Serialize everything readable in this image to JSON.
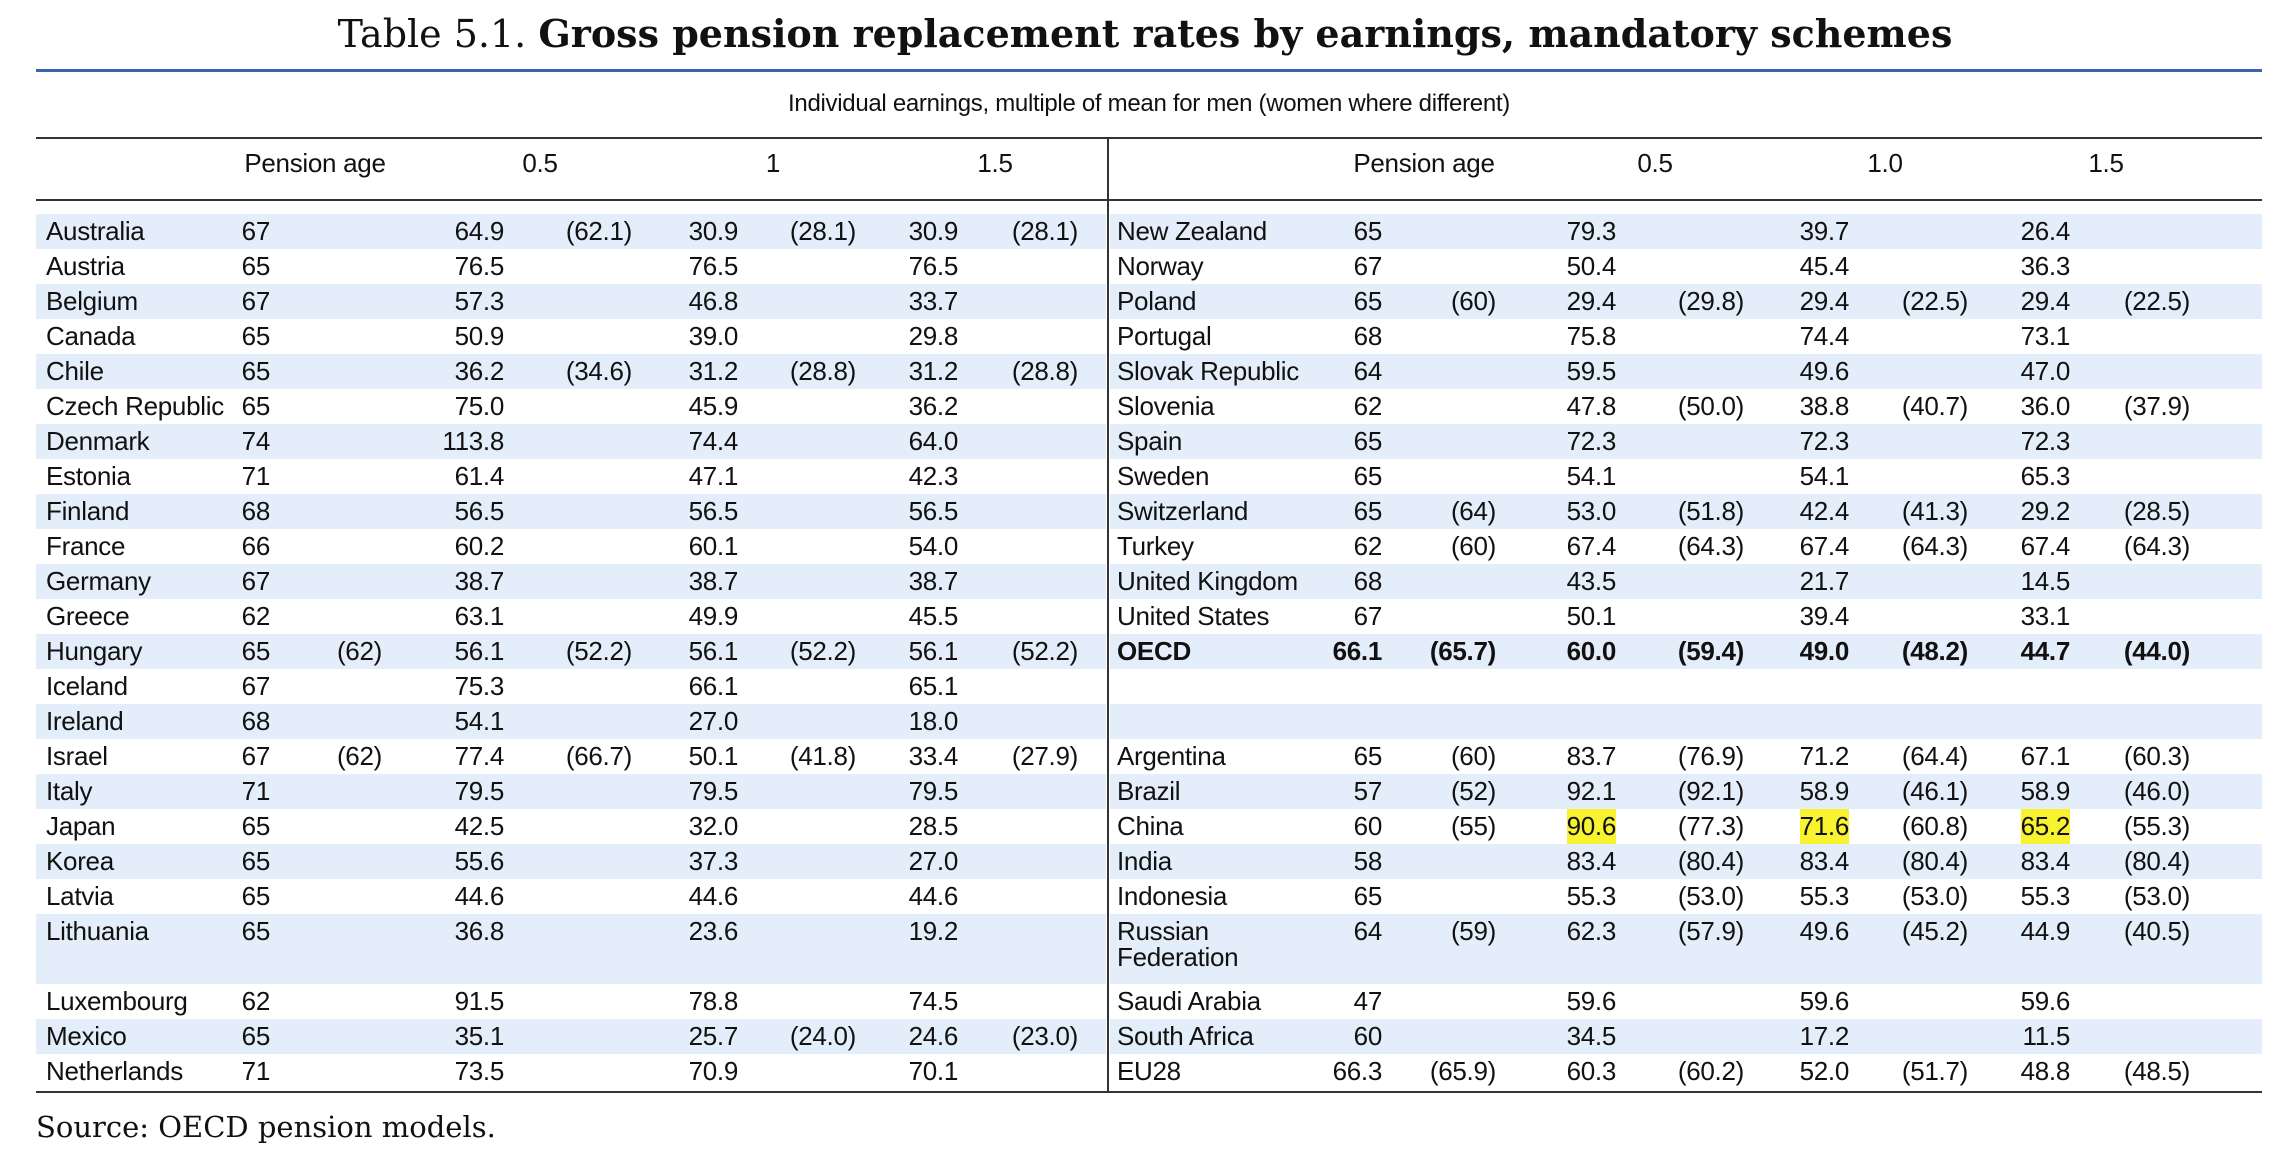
{
  "title": {
    "prefix": "Table 5.1.",
    "main": "Gross pension replacement rates by earnings, mandatory schemes"
  },
  "subheader": "Individual earnings, multiple of mean for men (women where different)",
  "columns_left": [
    "Pension age",
    "0.5",
    "1",
    "1.5"
  ],
  "columns_right": [
    "Pension age",
    "0.5",
    "1.0",
    "1.5"
  ],
  "left_rows": [
    {
      "country": "Australia",
      "age": "67",
      "age_w": "",
      "r05": "64.9",
      "r05_w": "(62.1)",
      "r1": "30.9",
      "r1_w": "(28.1)",
      "r15": "30.9",
      "r15_w": "(28.1)"
    },
    {
      "country": "Austria",
      "age": "65",
      "age_w": "",
      "r05": "76.5",
      "r05_w": "",
      "r1": "76.5",
      "r1_w": "",
      "r15": "76.5",
      "r15_w": ""
    },
    {
      "country": "Belgium",
      "age": "67",
      "age_w": "",
      "r05": "57.3",
      "r05_w": "",
      "r1": "46.8",
      "r1_w": "",
      "r15": "33.7",
      "r15_w": ""
    },
    {
      "country": "Canada",
      "age": "65",
      "age_w": "",
      "r05": "50.9",
      "r05_w": "",
      "r1": "39.0",
      "r1_w": "",
      "r15": "29.8",
      "r15_w": ""
    },
    {
      "country": "Chile",
      "age": "65",
      "age_w": "",
      "r05": "36.2",
      "r05_w": "(34.6)",
      "r1": "31.2",
      "r1_w": "(28.8)",
      "r15": "31.2",
      "r15_w": "(28.8)"
    },
    {
      "country": "Czech Republic",
      "age": "65",
      "age_w": "",
      "r05": "75.0",
      "r05_w": "",
      "r1": "45.9",
      "r1_w": "",
      "r15": "36.2",
      "r15_w": ""
    },
    {
      "country": "Denmark",
      "age": "74",
      "age_w": "",
      "r05": "113.8",
      "r05_w": "",
      "r1": "74.4",
      "r1_w": "",
      "r15": "64.0",
      "r15_w": ""
    },
    {
      "country": "Estonia",
      "age": "71",
      "age_w": "",
      "r05": "61.4",
      "r05_w": "",
      "r1": "47.1",
      "r1_w": "",
      "r15": "42.3",
      "r15_w": ""
    },
    {
      "country": "Finland",
      "age": "68",
      "age_w": "",
      "r05": "56.5",
      "r05_w": "",
      "r1": "56.5",
      "r1_w": "",
      "r15": "56.5",
      "r15_w": ""
    },
    {
      "country": "France",
      "age": "66",
      "age_w": "",
      "r05": "60.2",
      "r05_w": "",
      "r1": "60.1",
      "r1_w": "",
      "r15": "54.0",
      "r15_w": ""
    },
    {
      "country": "Germany",
      "age": "67",
      "age_w": "",
      "r05": "38.7",
      "r05_w": "",
      "r1": "38.7",
      "r1_w": "",
      "r15": "38.7",
      "r15_w": ""
    },
    {
      "country": "Greece",
      "age": "62",
      "age_w": "",
      "r05": "63.1",
      "r05_w": "",
      "r1": "49.9",
      "r1_w": "",
      "r15": "45.5",
      "r15_w": ""
    },
    {
      "country": "Hungary",
      "age": "65",
      "age_w": "(62)",
      "r05": "56.1",
      "r05_w": "(52.2)",
      "r1": "56.1",
      "r1_w": "(52.2)",
      "r15": "56.1",
      "r15_w": "(52.2)"
    },
    {
      "country": "Iceland",
      "age": "67",
      "age_w": "",
      "r05": "75.3",
      "r05_w": "",
      "r1": "66.1",
      "r1_w": "",
      "r15": "65.1",
      "r15_w": ""
    },
    {
      "country": "Ireland",
      "age": "68",
      "age_w": "",
      "r05": "54.1",
      "r05_w": "",
      "r1": "27.0",
      "r1_w": "",
      "r15": "18.0",
      "r15_w": ""
    },
    {
      "country": "Israel",
      "age": "67",
      "age_w": "(62)",
      "r05": "77.4",
      "r05_w": "(66.7)",
      "r1": "50.1",
      "r1_w": "(41.8)",
      "r15": "33.4",
      "r15_w": "(27.9)"
    },
    {
      "country": "Italy",
      "age": "71",
      "age_w": "",
      "r05": "79.5",
      "r05_w": "",
      "r1": "79.5",
      "r1_w": "",
      "r15": "79.5",
      "r15_w": ""
    },
    {
      "country": "Japan",
      "age": "65",
      "age_w": "",
      "r05": "42.5",
      "r05_w": "",
      "r1": "32.0",
      "r1_w": "",
      "r15": "28.5",
      "r15_w": ""
    },
    {
      "country": "Korea",
      "age": "65",
      "age_w": "",
      "r05": "55.6",
      "r05_w": "",
      "r1": "37.3",
      "r1_w": "",
      "r15": "27.0",
      "r15_w": ""
    },
    {
      "country": "Latvia",
      "age": "65",
      "age_w": "",
      "r05": "44.6",
      "r05_w": "",
      "r1": "44.6",
      "r1_w": "",
      "r15": "44.6",
      "r15_w": ""
    },
    {
      "country": "Lithuania",
      "age": "65",
      "age_w": "",
      "r05": "36.8",
      "r05_w": "",
      "r1": "23.6",
      "r1_w": "",
      "r15": "19.2",
      "r15_w": ""
    },
    {
      "country": "Luxembourg",
      "age": "62",
      "age_w": "",
      "r05": "91.5",
      "r05_w": "",
      "r1": "78.8",
      "r1_w": "",
      "r15": "74.5",
      "r15_w": ""
    },
    {
      "country": "Mexico",
      "age": "65",
      "age_w": "",
      "r05": "35.1",
      "r05_w": "",
      "r1": "25.7",
      "r1_w": "(24.0)",
      "r15": "24.6",
      "r15_w": "(23.0)"
    },
    {
      "country": "Netherlands",
      "age": "71",
      "age_w": "",
      "r05": "73.5",
      "r05_w": "",
      "r1": "70.9",
      "r1_w": "",
      "r15": "70.1",
      "r15_w": ""
    }
  ],
  "right_rows": [
    {
      "country": "New Zealand",
      "age": "65",
      "age_w": "",
      "r05": "79.3",
      "r05_w": "",
      "r1": "39.7",
      "r1_w": "",
      "r15": "26.4",
      "r15_w": ""
    },
    {
      "country": "Norway",
      "age": "67",
      "age_w": "",
      "r05": "50.4",
      "r05_w": "",
      "r1": "45.4",
      "r1_w": "",
      "r15": "36.3",
      "r15_w": ""
    },
    {
      "country": "Poland",
      "age": "65",
      "age_w": "(60)",
      "r05": "29.4",
      "r05_w": "(29.8)",
      "r1": "29.4",
      "r1_w": "(22.5)",
      "r15": "29.4",
      "r15_w": "(22.5)"
    },
    {
      "country": "Portugal",
      "age": "68",
      "age_w": "",
      "r05": "75.8",
      "r05_w": "",
      "r1": "74.4",
      "r1_w": "",
      "r15": "73.1",
      "r15_w": ""
    },
    {
      "country": "Slovak Republic",
      "age": "64",
      "age_w": "",
      "r05": "59.5",
      "r05_w": "",
      "r1": "49.6",
      "r1_w": "",
      "r15": "47.0",
      "r15_w": ""
    },
    {
      "country": "Slovenia",
      "age": "62",
      "age_w": "",
      "r05": "47.8",
      "r05_w": "(50.0)",
      "r1": "38.8",
      "r1_w": "(40.7)",
      "r15": "36.0",
      "r15_w": "(37.9)"
    },
    {
      "country": "Spain",
      "age": "65",
      "age_w": "",
      "r05": "72.3",
      "r05_w": "",
      "r1": "72.3",
      "r1_w": "",
      "r15": "72.3",
      "r15_w": ""
    },
    {
      "country": "Sweden",
      "age": "65",
      "age_w": "",
      "r05": "54.1",
      "r05_w": "",
      "r1": "54.1",
      "r1_w": "",
      "r15": "65.3",
      "r15_w": ""
    },
    {
      "country": "Switzerland",
      "age": "65",
      "age_w": "(64)",
      "r05": "53.0",
      "r05_w": "(51.8)",
      "r1": "42.4",
      "r1_w": "(41.3)",
      "r15": "29.2",
      "r15_w": "(28.5)"
    },
    {
      "country": "Turkey",
      "age": "62",
      "age_w": "(60)",
      "r05": "67.4",
      "r05_w": "(64.3)",
      "r1": "67.4",
      "r1_w": "(64.3)",
      "r15": "67.4",
      "r15_w": "(64.3)"
    },
    {
      "country": "United Kingdom",
      "age": "68",
      "age_w": "",
      "r05": "43.5",
      "r05_w": "",
      "r1": "21.7",
      "r1_w": "",
      "r15": "14.5",
      "r15_w": ""
    },
    {
      "country": "United States",
      "age": "67",
      "age_w": "",
      "r05": "50.1",
      "r05_w": "",
      "r1": "39.4",
      "r1_w": "",
      "r15": "33.1",
      "r15_w": ""
    },
    {
      "country": "OECD",
      "age": "66.1",
      "age_w": "(65.7)",
      "r05": "60.0",
      "r05_w": "(59.4)",
      "r1": "49.0",
      "r1_w": "(48.2)",
      "r15": "44.7",
      "r15_w": "(44.0)",
      "bold": true
    },
    {
      "country": "",
      "age": "",
      "age_w": "",
      "r05": "",
      "r05_w": "",
      "r1": "",
      "r1_w": "",
      "r15": "",
      "r15_w": ""
    },
    {
      "country": "",
      "age": "",
      "age_w": "",
      "r05": "",
      "r05_w": "",
      "r1": "",
      "r1_w": "",
      "r15": "",
      "r15_w": ""
    },
    {
      "country": "Argentina",
      "age": "65",
      "age_w": "(60)",
      "r05": "83.7",
      "r05_w": "(76.9)",
      "r1": "71.2",
      "r1_w": "(64.4)",
      "r15": "67.1",
      "r15_w": "(60.3)"
    },
    {
      "country": "Brazil",
      "age": "57",
      "age_w": "(52)",
      "r05": "92.1",
      "r05_w": "(92.1)",
      "r1": "58.9",
      "r1_w": "(46.1)",
      "r15": "58.9",
      "r15_w": "(46.0)"
    },
    {
      "country": "China",
      "age": "60",
      "age_w": "(55)",
      "r05": "90.6",
      "r05_w": "(77.3)",
      "r1": "71.6",
      "r1_w": "(60.8)",
      "r15": "65.2",
      "r15_w": "(55.3)",
      "highlight": true
    },
    {
      "country": "India",
      "age": "58",
      "age_w": "",
      "r05": "83.4",
      "r05_w": "(80.4)",
      "r1": "83.4",
      "r1_w": "(80.4)",
      "r15": "83.4",
      "r15_w": "(80.4)"
    },
    {
      "country": "Indonesia",
      "age": "65",
      "age_w": "",
      "r05": "55.3",
      "r05_w": "(53.0)",
      "r1": "55.3",
      "r1_w": "(53.0)",
      "r15": "55.3",
      "r15_w": "(53.0)"
    },
    {
      "country": "Russian Federation",
      "country_lines": [
        "Russian",
        "Federation"
      ],
      "age": "64",
      "age_w": "(59)",
      "r05": "62.3",
      "r05_w": "(57.9)",
      "r1": "49.6",
      "r1_w": "(45.2)",
      "r15": "44.9",
      "r15_w": "(40.5)"
    },
    {
      "country": "Saudi Arabia",
      "age": "47",
      "age_w": "",
      "r05": "59.6",
      "r05_w": "",
      "r1": "59.6",
      "r1_w": "",
      "r15": "59.6",
      "r15_w": ""
    },
    {
      "country": "South Africa",
      "age": "60",
      "age_w": "",
      "r05": "34.5",
      "r05_w": "",
      "r1": "17.2",
      "r1_w": "",
      "r15": "11.5",
      "r15_w": ""
    },
    {
      "country": "EU28",
      "age": "66.3",
      "age_w": "(65.9)",
      "r05": "60.3",
      "r05_w": "(60.2)",
      "r1": "52.0",
      "r1_w": "(51.7)",
      "r15": "48.8",
      "r15_w": "(48.5)"
    }
  ],
  "source": "Source: OECD pension models.",
  "colors": {
    "accent_rule": "#3b64ad",
    "row_shade": "#e3eefa",
    "highlight": "#f8f330"
  }
}
